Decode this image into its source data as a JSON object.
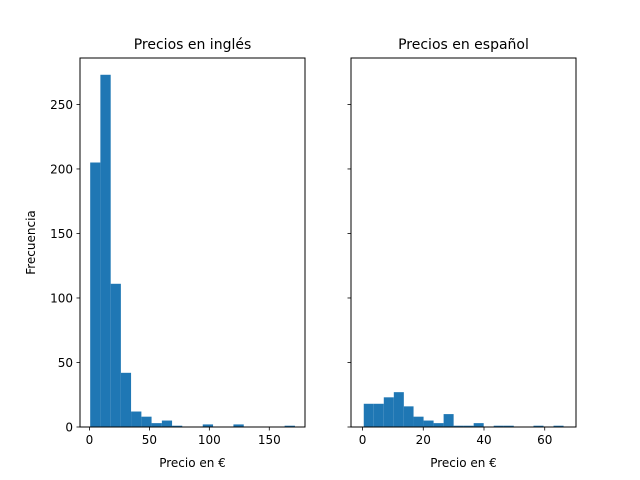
{
  "chart_data": [
    {
      "type": "bar",
      "title": "Precios en inglés",
      "xlabel": "Precio en €",
      "ylabel": "Frecuencia",
      "xlim": [
        -7.9,
        179.8
      ],
      "ylim": [
        0,
        286
      ],
      "xticks": [
        0,
        50,
        100,
        150
      ],
      "yticks": [
        0,
        50,
        100,
        150,
        200,
        250
      ],
      "bin_edges": [
        0.6,
        9.1,
        17.7,
        26.2,
        34.7,
        43.3,
        51.8,
        60.4,
        68.9,
        77.4,
        86.0,
        94.5,
        103.1,
        111.6,
        120.1,
        128.7,
        137.2,
        145.7,
        154.3,
        162.8,
        171.4
      ],
      "values": [
        205,
        273,
        111,
        42,
        12,
        8,
        3,
        5,
        1,
        0,
        0,
        2,
        0,
        0,
        2,
        0,
        0,
        0,
        0,
        1
      ],
      "color": "#1f77b4",
      "grid": false
    },
    {
      "type": "bar",
      "title": "Precios en español",
      "xlabel": "Precio en €",
      "ylabel": "",
      "xlim": [
        -3.8,
        70.3
      ],
      "ylim": [
        0,
        286
      ],
      "xticks": [
        0,
        20,
        40,
        60
      ],
      "yticks": [
        0,
        50,
        100,
        150,
        200,
        250
      ],
      "ytick_labels_shown": false,
      "bin_edges": [
        0.4,
        3.7,
        7.0,
        10.3,
        13.6,
        16.8,
        20.1,
        23.4,
        26.7,
        30.0,
        33.3,
        36.6,
        39.9,
        43.2,
        46.5,
        49.8,
        53.0,
        56.3,
        59.6,
        62.9,
        66.2
      ],
      "values": [
        18,
        18,
        23,
        27,
        16,
        8,
        5,
        3,
        10,
        1,
        1,
        3,
        0,
        1,
        1,
        0,
        0,
        1,
        0,
        1
      ],
      "color": "#1f77b4",
      "grid": false
    }
  ]
}
